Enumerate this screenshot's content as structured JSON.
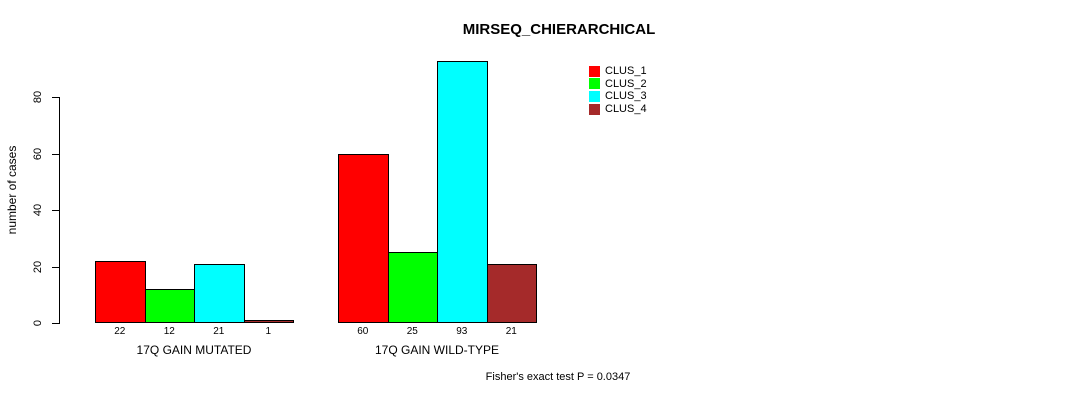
{
  "chart_data": {
    "type": "bar",
    "title": "MIRSEQ_CHIERARCHICAL",
    "ylabel": "number of cases",
    "xlabel": "",
    "categories": [
      "17Q GAIN MUTATED",
      "17Q GAIN WILD-TYPE"
    ],
    "series": [
      {
        "name": "CLUS_1",
        "color": "#FF0000",
        "values": [
          22,
          60
        ]
      },
      {
        "name": "CLUS_2",
        "color": "#00FF00",
        "values": [
          12,
          25
        ]
      },
      {
        "name": "CLUS_3",
        "color": "#00FFFF",
        "values": [
          21,
          93
        ]
      },
      {
        "name": "CLUS_4",
        "color": "#A52A2A",
        "values": [
          1,
          21
        ]
      }
    ],
    "bar_value_labels": [
      [
        22,
        12,
        21,
        1
      ],
      [
        60,
        25,
        93,
        21
      ]
    ],
    "yticks": [
      0,
      20,
      40,
      60,
      80
    ],
    "ylim": [
      0,
      95
    ],
    "grid": false,
    "legend_position": "top-right",
    "annotation": "Fisher's exact test P = 0.0347"
  }
}
